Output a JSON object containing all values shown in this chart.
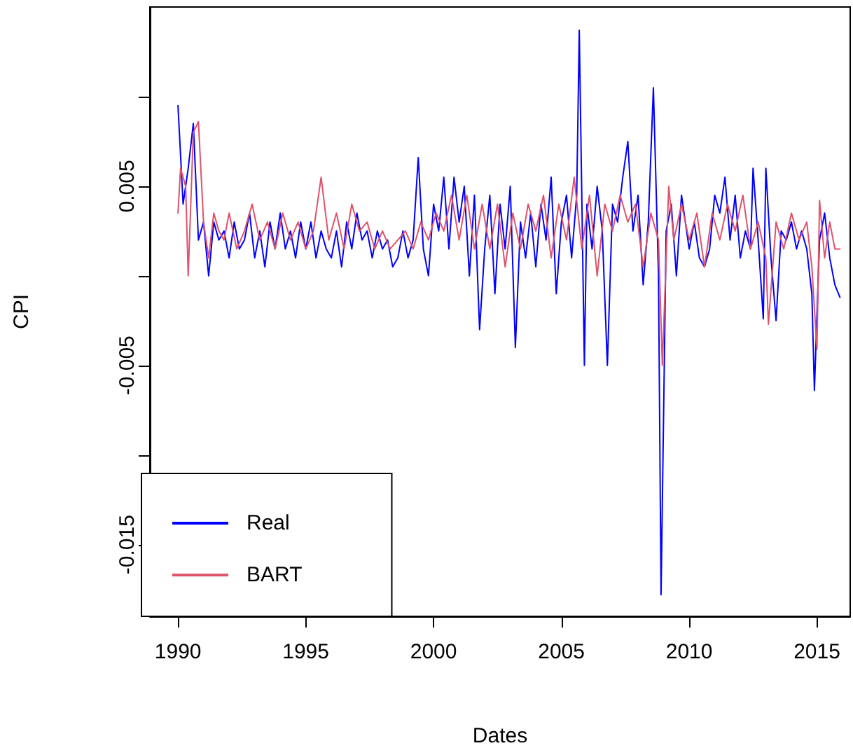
{
  "chart_data": {
    "type": "line",
    "xlabel": "Dates",
    "ylabel": "CPI",
    "xlim": [
      1988.9,
      2016.3
    ],
    "ylim": [
      -0.019,
      0.015
    ],
    "xticks": [
      1990,
      1995,
      2000,
      2005,
      2010,
      2015
    ],
    "yticks": [
      -0.015,
      {
        "value": -0.01,
        "label": null
      },
      -0.005,
      {
        "value": 0,
        "label": null
      },
      0.005,
      {
        "value": 0.01,
        "label": null
      }
    ],
    "grid": false,
    "legend": "bottom left",
    "marker": "none",
    "line_style": "solid",
    "series": [
      {
        "name": "Real",
        "color": "#0000ff",
        "x": [
          1990.0,
          1990.2,
          1990.4,
          1990.6,
          1990.8,
          1991.0,
          1991.2,
          1991.4,
          1991.6,
          1991.8,
          1992.0,
          1992.2,
          1992.4,
          1992.6,
          1992.8,
          1993.0,
          1993.2,
          1993.4,
          1993.6,
          1993.8,
          1994.0,
          1994.2,
          1994.4,
          1994.6,
          1994.8,
          1995.0,
          1995.2,
          1995.4,
          1995.6,
          1995.8,
          1996.0,
          1996.2,
          1996.4,
          1996.6,
          1996.8,
          1997.0,
          1997.2,
          1997.4,
          1997.6,
          1997.8,
          1998.0,
          1998.2,
          1998.4,
          1998.6,
          1998.8,
          1999.0,
          1999.2,
          1999.4,
          1999.6,
          1999.8,
          2000.0,
          2000.2,
          2000.4,
          2000.6,
          2000.8,
          2001.0,
          2001.2,
          2001.4,
          2001.6,
          2001.8,
          2002.0,
          2002.2,
          2002.4,
          2002.6,
          2002.8,
          2003.0,
          2003.2,
          2003.4,
          2003.6,
          2003.8,
          2004.0,
          2004.2,
          2004.4,
          2004.6,
          2004.8,
          2005.0,
          2005.2,
          2005.4,
          2005.6,
          2005.7,
          2005.9,
          2006.0,
          2006.2,
          2006.4,
          2006.6,
          2006.8,
          2007.0,
          2007.2,
          2007.4,
          2007.6,
          2007.8,
          2008.0,
          2008.2,
          2008.4,
          2008.6,
          2008.8,
          2008.9,
          2009.1,
          2009.3,
          2009.5,
          2009.7,
          2010.0,
          2010.2,
          2010.4,
          2010.6,
          2010.8,
          2011.0,
          2011.2,
          2011.4,
          2011.6,
          2011.8,
          2012.0,
          2012.2,
          2012.4,
          2012.5,
          2012.7,
          2012.9,
          2013.0,
          2013.2,
          2013.4,
          2013.6,
          2013.8,
          2014.0,
          2014.2,
          2014.4,
          2014.6,
          2014.8,
          2014.9,
          2015.1,
          2015.3,
          2015.5,
          2015.7,
          2015.9
        ],
        "values": [
          0.0095,
          0.004,
          0.006,
          0.0085,
          0.002,
          0.003,
          0.0,
          0.003,
          0.002,
          0.0025,
          0.001,
          0.003,
          0.0015,
          0.002,
          0.0035,
          0.001,
          0.0025,
          0.0005,
          0.003,
          0.0015,
          0.0035,
          0.0015,
          0.0025,
          0.001,
          0.003,
          0.0015,
          0.003,
          0.001,
          0.0025,
          0.0015,
          0.001,
          0.0025,
          0.0005,
          0.003,
          0.0015,
          0.0035,
          0.002,
          0.0025,
          0.001,
          0.0025,
          0.0015,
          0.002,
          0.0005,
          0.001,
          0.0025,
          0.001,
          0.002,
          0.0066,
          0.0015,
          0.0,
          0.004,
          0.0025,
          0.0055,
          0.0015,
          0.0055,
          0.003,
          0.005,
          0.0,
          0.0045,
          -0.003,
          0.0015,
          0.0045,
          -0.001,
          0.004,
          0.0015,
          0.005,
          -0.004,
          0.003,
          0.001,
          0.0035,
          0.0005,
          0.004,
          0.002,
          0.0055,
          -0.001,
          0.003,
          0.0045,
          0.001,
          0.0045,
          0.0137,
          -0.005,
          0.004,
          0.0015,
          0.005,
          0.0025,
          -0.005,
          0.004,
          0.003,
          0.0055,
          0.0075,
          0.0025,
          0.0045,
          -0.0005,
          0.003,
          0.0105,
          0.0,
          -0.0178,
          0.0025,
          0.004,
          0.0,
          0.0045,
          0.0015,
          0.003,
          0.001,
          0.0005,
          0.0015,
          0.0045,
          0.0035,
          0.0055,
          0.002,
          0.0045,
          0.001,
          0.0025,
          0.0015,
          0.006,
          0.002,
          -0.0024,
          0.006,
          0.001,
          -0.0025,
          0.0025,
          0.002,
          0.003,
          0.0015,
          0.0025,
          0.0015,
          -0.001,
          -0.0064,
          0.002,
          0.0035,
          0.001,
          -0.0005,
          -0.0012
        ]
      },
      {
        "name": "BART",
        "color": "#df536b",
        "x": [
          1990.0,
          1990.1,
          1990.3,
          1990.4,
          1990.6,
          1990.8,
          1991.0,
          1991.2,
          1991.4,
          1991.6,
          1991.8,
          1992.0,
          1992.3,
          1992.6,
          1992.9,
          1993.2,
          1993.5,
          1993.8,
          1994.1,
          1994.4,
          1994.7,
          1995.0,
          1995.3,
          1995.6,
          1995.9,
          1996.2,
          1996.5,
          1996.8,
          1997.1,
          1997.4,
          1997.7,
          1998.0,
          1998.3,
          1998.6,
          1998.9,
          1999.2,
          1999.5,
          1999.8,
          2000.1,
          2000.4,
          2000.7,
          2001.0,
          2001.3,
          2001.6,
          2001.9,
          2002.2,
          2002.5,
          2002.8,
          2003.1,
          2003.4,
          2003.7,
          2004.0,
          2004.3,
          2004.6,
          2004.9,
          2005.2,
          2005.5,
          2005.8,
          2006.1,
          2006.4,
          2006.7,
          2007.0,
          2007.3,
          2007.6,
          2007.9,
          2008.2,
          2008.5,
          2008.8,
          2008.95,
          2009.2,
          2009.4,
          2009.7,
          2010.0,
          2010.3,
          2010.6,
          2010.9,
          2011.2,
          2011.5,
          2011.8,
          2012.1,
          2012.4,
          2012.7,
          2013.0,
          2013.1,
          2013.4,
          2013.7,
          2014.0,
          2014.3,
          2014.6,
          2014.8,
          2015.0,
          2015.1,
          2015.3,
          2015.5,
          2015.7,
          2015.9
        ],
        "values": [
          0.0035,
          0.006,
          0.005,
          0.0,
          0.008,
          0.0086,
          0.003,
          0.001,
          0.0035,
          0.0025,
          0.002,
          0.0035,
          0.0015,
          0.0025,
          0.004,
          0.002,
          0.003,
          0.0015,
          0.0035,
          0.002,
          0.003,
          0.0015,
          0.0025,
          0.0055,
          0.002,
          0.0035,
          0.0015,
          0.004,
          0.0025,
          0.003,
          0.0015,
          0.0025,
          0.0015,
          0.002,
          0.0025,
          0.0015,
          0.003,
          0.002,
          0.0035,
          0.0025,
          0.0045,
          0.002,
          0.0045,
          0.0015,
          0.004,
          0.0015,
          0.004,
          0.0005,
          0.0035,
          0.0015,
          0.004,
          0.0025,
          0.0045,
          0.001,
          0.004,
          0.002,
          0.0055,
          0.0015,
          0.0045,
          0.0,
          0.004,
          0.0025,
          0.0045,
          0.003,
          0.004,
          0.0005,
          0.0035,
          0.002,
          -0.005,
          0.005,
          0.002,
          0.004,
          0.002,
          0.0035,
          0.0005,
          0.0035,
          0.002,
          0.004,
          0.0025,
          0.0045,
          0.0015,
          0.003,
          0.001,
          -0.0027,
          0.003,
          0.0015,
          0.0035,
          0.002,
          0.003,
          0.0005,
          -0.0041,
          0.0042,
          0.001,
          0.003,
          0.0015,
          0.0015
        ]
      }
    ]
  }
}
